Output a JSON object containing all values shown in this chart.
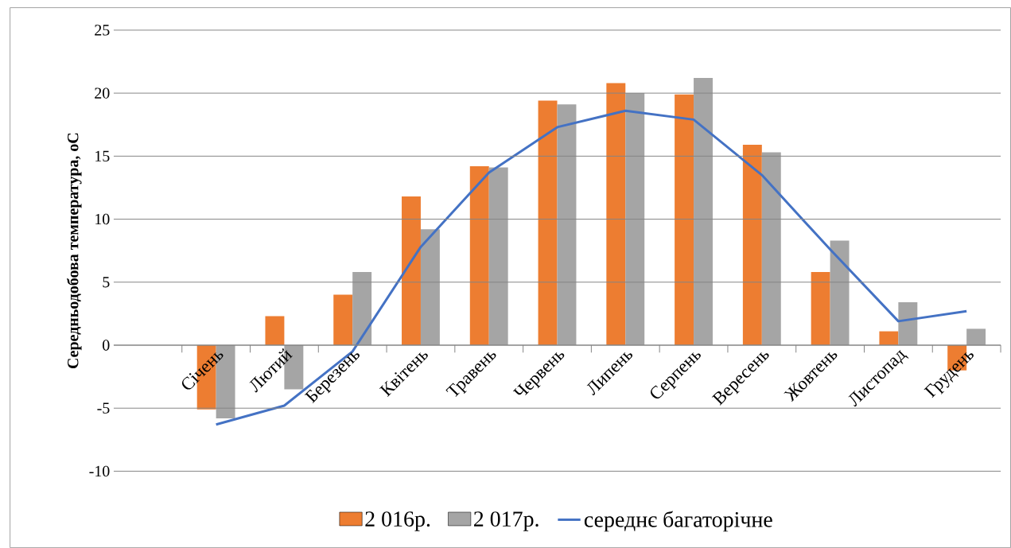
{
  "chart_data": {
    "type": "bar",
    "ylabel": "Середньодобова температура, оС",
    "categories": [
      "Січень",
      "Лютий",
      "Березень",
      "Квітень",
      "Травень",
      "Червень",
      "Липень",
      "Серпень",
      "Вересень",
      "Жовтень",
      "Листопад",
      "Грудень"
    ],
    "series": [
      {
        "name": "2 016р.",
        "color": "#ed7d31",
        "values": [
          -5.1,
          2.3,
          4.0,
          11.8,
          14.2,
          19.4,
          20.8,
          19.9,
          15.9,
          5.8,
          1.1,
          -2.0
        ]
      },
      {
        "name": "2 017р.",
        "color": "#a5a5a5",
        "values": [
          -5.8,
          -3.5,
          5.8,
          9.2,
          14.1,
          19.1,
          20.0,
          21.2,
          15.3,
          8.3,
          3.4,
          1.3
        ]
      },
      {
        "name": "середнє багаторічне",
        "type": "line",
        "color": "#4472c4",
        "values": [
          -6.3,
          -4.8,
          -0.5,
          7.8,
          13.7,
          17.3,
          18.6,
          17.9,
          13.5,
          7.6,
          1.9,
          2.7
        ]
      }
    ],
    "ylim": [
      -10,
      25
    ],
    "yticks": [
      -10,
      -5,
      0,
      5,
      10,
      15,
      20,
      25
    ],
    "grid": "y",
    "legend": "bottom",
    "marker": "none"
  }
}
